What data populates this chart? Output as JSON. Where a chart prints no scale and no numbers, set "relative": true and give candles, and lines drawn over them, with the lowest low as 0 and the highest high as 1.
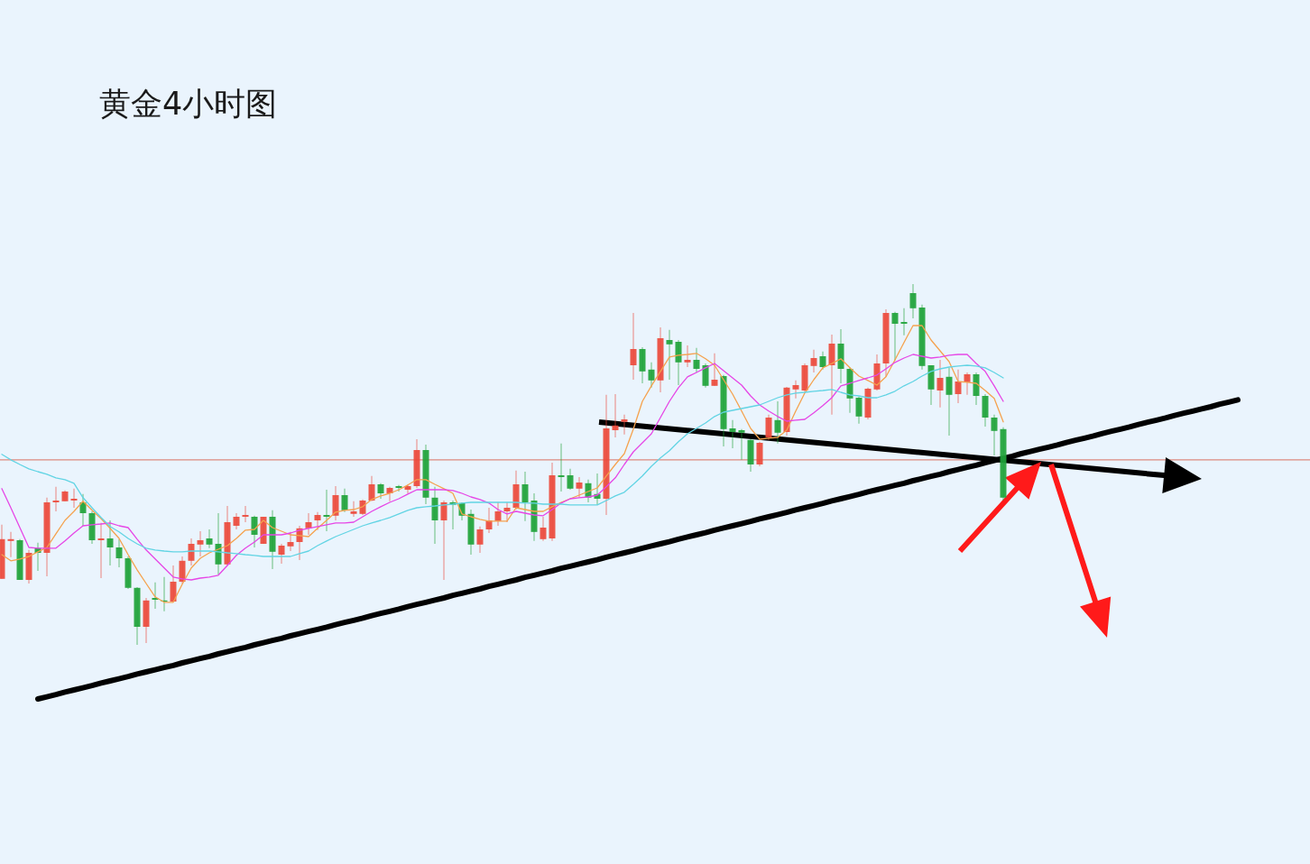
{
  "chart_data": {
    "type": "candlestick",
    "title": "黄金4小时图",
    "relative": true,
    "categories": [
      null,
      null,
      null,
      null,
      null,
      null,
      null,
      null,
      null,
      null,
      null,
      null,
      null,
      null,
      null,
      null,
      null,
      null,
      null,
      null,
      null,
      null,
      null,
      null,
      null,
      null,
      null,
      null,
      null,
      null,
      null,
      null,
      null,
      null,
      null,
      null,
      null,
      null,
      null,
      null,
      null,
      null,
      null,
      null,
      null,
      null,
      null,
      null,
      null,
      null,
      null,
      null,
      null,
      null,
      null,
      null,
      null,
      null,
      null,
      null,
      null,
      null,
      null,
      null,
      null,
      null,
      null,
      null,
      null,
      null,
      null,
      null,
      null,
      null,
      null,
      null,
      null,
      null,
      null,
      null,
      null,
      null,
      null,
      null,
      null,
      null,
      null,
      null,
      null,
      null,
      null,
      null,
      null,
      null,
      null,
      null,
      null,
      null,
      null,
      null,
      null,
      null,
      null,
      null,
      null,
      null,
      null,
      null,
      null,
      null,
      null,
      null,
      null,
      null,
      null,
      null,
      null,
      null,
      null,
      null,
      null,
      null,
      null,
      null,
      null,
      null,
      null,
      null,
      null,
      null,
      null,
      null,
      null,
      null,
      null,
      null,
      null,
      null,
      null,
      null,
      null,
      null,
      null,
      null,
      null,
      null
    ],
    "ohlc": [
      [
        0.183,
        0.333,
        0.183,
        0.293
      ],
      [
        0.288,
        0.313,
        0.243,
        0.293
      ],
      [
        0.29,
        0.293,
        0.18,
        0.18
      ],
      [
        0.18,
        0.263,
        0.17,
        0.255
      ],
      [
        0.268,
        0.283,
        0.205,
        0.255
      ],
      [
        0.255,
        0.408,
        0.19,
        0.395
      ],
      [
        0.395,
        0.438,
        0.37,
        0.4
      ],
      [
        0.398,
        0.428,
        0.398,
        0.425
      ],
      [
        0.4,
        0.433,
        0.38,
        0.405
      ],
      [
        0.395,
        0.418,
        0.33,
        0.365
      ],
      [
        0.365,
        0.37,
        0.28,
        0.29
      ],
      [
        0.29,
        0.338,
        0.185,
        0.295
      ],
      [
        0.295,
        0.345,
        0.22,
        0.27
      ],
      [
        0.27,
        0.293,
        0.215,
        0.24
      ],
      [
        0.24,
        0.245,
        0.155,
        0.158
      ],
      [
        0.158,
        0.16,
        0,
        0.05
      ],
      [
        0.05,
        0.13,
        0.005,
        0.123
      ],
      [
        0.13,
        0.173,
        0.1,
        0.125
      ],
      [
        0.123,
        0.188,
        0.093,
        0.12
      ],
      [
        0.12,
        0.22,
        0.118,
        0.175
      ],
      [
        0.175,
        0.245,
        0.17,
        0.233
      ],
      [
        0.233,
        0.295,
        0.22,
        0.28
      ],
      [
        0.278,
        0.315,
        0.245,
        0.29
      ],
      [
        0.295,
        0.32,
        0.268,
        0.278
      ],
      [
        0.28,
        0.365,
        0.195,
        0.223
      ],
      [
        0.223,
        0.385,
        0.22,
        0.34
      ],
      [
        0.33,
        0.365,
        0.32,
        0.355
      ],
      [
        0.355,
        0.385,
        0.34,
        0.36
      ],
      [
        0.355,
        0.358,
        0.27,
        0.305
      ],
      [
        0.28,
        0.355,
        0.28,
        0.355
      ],
      [
        0.355,
        0.373,
        0.21,
        0.258
      ],
      [
        0.25,
        0.28,
        0.225,
        0.275
      ],
      [
        0.273,
        0.313,
        0.26,
        0.285
      ],
      [
        0.285,
        0.33,
        0.235,
        0.323
      ],
      [
        0.323,
        0.365,
        0.305,
        0.34
      ],
      [
        0.345,
        0.368,
        0.318,
        0.36
      ],
      [
        0.36,
        0.43,
        0.315,
        0.355
      ],
      [
        0.358,
        0.44,
        0.345,
        0.415
      ],
      [
        0.415,
        0.433,
        0.368,
        0.373
      ],
      [
        0.363,
        0.398,
        0.355,
        0.37
      ],
      [
        0.363,
        0.403,
        0.36,
        0.4
      ],
      [
        0.4,
        0.468,
        0.398,
        0.445
      ],
      [
        0.445,
        0.448,
        0.405,
        0.42
      ],
      [
        0.42,
        0.438,
        0.398,
        0.435
      ],
      [
        0.44,
        0.443,
        0.425,
        0.435
      ],
      [
        0.43,
        0.445,
        0.42,
        0.44
      ],
      [
        0.44,
        0.57,
        0.435,
        0.54
      ],
      [
        0.54,
        0.555,
        0.39,
        0.408
      ],
      [
        0.408,
        0.438,
        0.28,
        0.345
      ],
      [
        0.345,
        0.4,
        0.18,
        0.395
      ],
      [
        0.395,
        0.4,
        0.32,
        0.388
      ],
      [
        0.393,
        0.395,
        0.345,
        0.358
      ],
      [
        0.363,
        0.375,
        0.25,
        0.278
      ],
      [
        0.278,
        0.328,
        0.255,
        0.32
      ],
      [
        0.32,
        0.38,
        0.31,
        0.345
      ],
      [
        0.343,
        0.395,
        0.33,
        0.37
      ],
      [
        0.37,
        0.395,
        0.34,
        0.38
      ],
      [
        0.38,
        0.483,
        0.375,
        0.445
      ],
      [
        0.445,
        0.48,
        0.343,
        0.395
      ],
      [
        0.4,
        0.42,
        0.288,
        0.313
      ],
      [
        0.293,
        0.355,
        0.288,
        0.325
      ],
      [
        0.295,
        0.505,
        0.288,
        0.47
      ],
      [
        0.47,
        0.558,
        0.425,
        0.465
      ],
      [
        0.47,
        0.488,
        0.43,
        0.433
      ],
      [
        0.433,
        0.465,
        0.408,
        0.45
      ],
      [
        0.448,
        0.458,
        0.395,
        0.408
      ],
      [
        0.418,
        0.475,
        0.388,
        0.405
      ],
      [
        0.405,
        0.693,
        0.36,
        0.6
      ],
      [
        0.595,
        0.695,
        0.575,
        0.608
      ],
      [
        0.618,
        0.638,
        0.583,
        0.625
      ],
      [
        0.775,
        0.92,
        0.735,
        0.82
      ],
      [
        0.82,
        0.825,
        0.725,
        0.758
      ],
      [
        0.763,
        0.783,
        0.713,
        0.733
      ],
      [
        0.733,
        0.88,
        0.7,
        0.85
      ],
      [
        0.845,
        0.873,
        0.735,
        0.833
      ],
      [
        0.84,
        0.845,
        0.72,
        0.783
      ],
      [
        0.783,
        0.83,
        0.77,
        0.79
      ],
      [
        0.79,
        0.823,
        0.755,
        0.765
      ],
      [
        0.775,
        0.78,
        0.713,
        0.718
      ],
      [
        0.718,
        0.808,
        0.718,
        0.735
      ],
      [
        0.745,
        0.748,
        0.55,
        0.598
      ],
      [
        0.6,
        0.623,
        0.545,
        0.59
      ],
      [
        0.595,
        0.598,
        0.513,
        0.588
      ],
      [
        0.568,
        0.57,
        0.48,
        0.5
      ],
      [
        0.5,
        0.563,
        0.495,
        0.56
      ],
      [
        0.575,
        0.638,
        0.568,
        0.63
      ],
      [
        0.623,
        0.675,
        0.558,
        0.588
      ],
      [
        0.59,
        0.715,
        0.58,
        0.713
      ],
      [
        0.708,
        0.733,
        0.683,
        0.72
      ],
      [
        0.705,
        0.78,
        0.7,
        0.775
      ],
      [
        0.773,
        0.818,
        0.755,
        0.795
      ],
      [
        0.8,
        0.813,
        0.763,
        0.77
      ],
      [
        0.775,
        0.86,
        0.638,
        0.835
      ],
      [
        0.835,
        0.875,
        0.725,
        0.765
      ],
      [
        0.765,
        0.77,
        0.643,
        0.683
      ],
      [
        0.685,
        0.688,
        0.613,
        0.633
      ],
      [
        0.63,
        0.713,
        0.625,
        0.71
      ],
      [
        0.708,
        0.805,
        0.705,
        0.78
      ],
      [
        0.78,
        0.93,
        0.743,
        0.92
      ],
      [
        0.92,
        0.923,
        0.788,
        0.89
      ],
      [
        0.895,
        0.933,
        0.858,
        0.89
      ],
      [
        0.975,
        1,
        0.905,
        0.933
      ],
      [
        0.935,
        0.943,
        0.763,
        0.773
      ],
      [
        0.775,
        0.775,
        0.665,
        0.708
      ],
      [
        0.705,
        0.79,
        0.658,
        0.74
      ],
      [
        0.743,
        0.768,
        0.58,
        0.693
      ],
      [
        0.695,
        0.763,
        0.67,
        0.73
      ],
      [
        0.728,
        0.755,
        0.693,
        0.75
      ],
      [
        0.75,
        0.755,
        0.665,
        0.69
      ],
      [
        0.69,
        0.695,
        0.605,
        0.63
      ],
      [
        0.63,
        0.638,
        0.525,
        0.593
      ],
      [
        0.598,
        0.603,
        0.4,
        0.408
      ],
      null,
      null,
      null,
      null,
      null,
      null,
      null,
      null,
      null,
      null,
      null,
      null,
      null,
      null,
      null,
      null,
      null,
      null,
      null,
      null,
      null,
      null,
      null,
      null,
      null,
      null,
      null,
      null,
      null,
      null,
      null,
      null,
      null,
      null
    ],
    "colors": [
      "#ec4a3c",
      "#ec4a3c",
      "#1fa33a",
      "#ec4a3c",
      "#1fa33a",
      "#ec4a3c",
      "#ec4a3c",
      "#ec4a3c",
      "#ec4a3c",
      "#1fa33a",
      "#1fa33a",
      "#ec4a3c",
      "#1fa33a",
      "#1fa33a",
      "#1fa33a",
      "#1fa33a",
      "#ec4a3c",
      "#1fa33a",
      "#1fa33a",
      "#ec4a3c",
      "#ec4a3c",
      "#ec4a3c",
      "#ec4a3c",
      "#1fa33a",
      "#1fa33a",
      "#ec4a3c",
      "#ec4a3c",
      "#ec4a3c",
      "#1fa33a",
      "#ec4a3c",
      "#1fa33a",
      "#ec4a3c",
      "#ec4a3c",
      "#ec4a3c",
      "#ec4a3c",
      "#ec4a3c",
      "#1fa33a",
      "#ec4a3c",
      "#1fa33a",
      "#ec4a3c",
      "#ec4a3c",
      "#ec4a3c",
      "#1fa33a",
      "#ec4a3c",
      "#1fa33a",
      "#ec4a3c",
      "#ec4a3c",
      "#1fa33a",
      "#1fa33a",
      "#ec4a3c",
      "#1fa33a",
      "#1fa33a",
      "#1fa33a",
      "#ec4a3c",
      "#ec4a3c",
      "#ec4a3c",
      "#ec4a3c",
      "#ec4a3c",
      "#1fa33a",
      "#1fa33a",
      "#ec4a3c",
      "#ec4a3c",
      "#1fa33a",
      "#1fa33a",
      "#ec4a3c",
      "#1fa33a",
      "#1fa33a",
      "#ec4a3c",
      "#ec4a3c",
      "#ec4a3c",
      "#ec4a3c",
      "#1fa33a",
      "#1fa33a",
      "#ec4a3c",
      "#1fa33a",
      "#1fa33a",
      "#ec4a3c",
      "#1fa33a",
      "#1fa33a",
      "#ec4a3c",
      "#1fa33a",
      "#1fa33a",
      "#1fa33a",
      "#1fa33a",
      "#ec4a3c",
      "#ec4a3c",
      "#1fa33a",
      "#ec4a3c",
      "#ec4a3c",
      "#ec4a3c",
      "#ec4a3c",
      "#1fa33a",
      "#ec4a3c",
      "#1fa33a",
      "#1fa33a",
      "#1fa33a",
      "#ec4a3c",
      "#ec4a3c",
      "#ec4a3c",
      "#1fa33a",
      "#1fa33a",
      "#1fa33a",
      "#1fa33a",
      "#1fa33a",
      "#ec4a3c",
      "#1fa33a",
      "#ec4a3c",
      "#ec4a3c",
      "#1fa33a",
      "#1fa33a",
      "#1fa33a",
      "#1fa33a",
      null,
      null,
      null,
      null,
      null,
      null,
      null,
      null,
      null,
      null,
      null,
      null,
      null,
      null,
      null,
      null,
      null,
      null,
      null,
      null,
      null,
      null,
      null,
      null,
      null,
      null,
      null,
      null,
      null,
      null,
      null,
      null,
      null,
      null
    ],
    "series": [
      {
        "type": "line",
        "color": "#f5a24e",
        "values": [
          0.25,
          0.233,
          0.238,
          0.245,
          0.258,
          0.27,
          0.308,
          0.345,
          0.37,
          0.398,
          0.373,
          0.35,
          0.323,
          0.295,
          0.25,
          0.208,
          0.17,
          0.133,
          0.118,
          0.118,
          0.168,
          0.213,
          0.24,
          0.255,
          0.265,
          0.275,
          0.295,
          0.318,
          0.32,
          0.345,
          0.325,
          0.315,
          0.305,
          0.303,
          0.3,
          0.323,
          0.345,
          0.368,
          0.373,
          0.375,
          0.383,
          0.403,
          0.413,
          0.42,
          0.43,
          0.443,
          0.458,
          0.458,
          0.445,
          0.433,
          0.42,
          0.363,
          0.355,
          0.348,
          0.343,
          0.343,
          0.343,
          0.38,
          0.375,
          0.37,
          0.37,
          0.383,
          0.395,
          0.405,
          0.415,
          0.425,
          0.435,
          0.468,
          0.5,
          0.53,
          0.598,
          0.675,
          0.718,
          0.758,
          0.798,
          0.803,
          0.805,
          0.808,
          0.793,
          0.775,
          0.735,
          0.695,
          0.648,
          0.6,
          0.57,
          0.573,
          0.575,
          0.595,
          0.648,
          0.698,
          0.735,
          0.768,
          0.78,
          0.793,
          0.768,
          0.745,
          0.733,
          0.72,
          0.743,
          0.79,
          0.838,
          0.885,
          0.885,
          0.845,
          0.815,
          0.785,
          0.73,
          0.728,
          0.725,
          0.705,
          0.683,
          0.618,
          null,
          null,
          null,
          null,
          null,
          null,
          null,
          null,
          null,
          null,
          null,
          null,
          null,
          null,
          null,
          null,
          null,
          null,
          null,
          null,
          null,
          null,
          null,
          null,
          null,
          null,
          null,
          null,
          null,
          null,
          null,
          null,
          null,
          null
        ]
      },
      {
        "type": "line",
        "color": "#e646e6",
        "values": [
          0.433,
          0.38,
          0.325,
          0.27,
          0.268,
          0.268,
          0.268,
          0.288,
          0.31,
          0.33,
          0.333,
          0.335,
          0.338,
          0.33,
          0.325,
          0.293,
          0.263,
          0.238,
          0.213,
          0.188,
          0.183,
          0.18,
          0.185,
          0.188,
          0.193,
          0.22,
          0.248,
          0.268,
          0.285,
          0.305,
          0.305,
          0.305,
          0.31,
          0.318,
          0.323,
          0.328,
          0.333,
          0.338,
          0.338,
          0.34,
          0.355,
          0.37,
          0.383,
          0.395,
          0.405,
          0.418,
          0.43,
          0.43,
          0.43,
          0.43,
          0.428,
          0.42,
          0.41,
          0.403,
          0.393,
          0.375,
          0.363,
          0.37,
          0.365,
          0.36,
          0.358,
          0.375,
          0.393,
          0.405,
          0.408,
          0.41,
          0.415,
          0.438,
          0.463,
          0.5,
          0.535,
          0.56,
          0.585,
          0.63,
          0.675,
          0.713,
          0.743,
          0.755,
          0.768,
          0.78,
          0.76,
          0.74,
          0.72,
          0.69,
          0.665,
          0.648,
          0.633,
          0.62,
          0.623,
          0.625,
          0.643,
          0.663,
          0.685,
          0.718,
          0.725,
          0.733,
          0.74,
          0.748,
          0.765,
          0.783,
          0.795,
          0.805,
          0.8,
          0.795,
          0.798,
          0.803,
          0.805,
          0.805,
          0.78,
          0.758,
          0.718,
          0.675,
          null,
          null,
          null,
          null,
          null,
          null,
          null,
          null,
          null,
          null,
          null,
          null,
          null,
          null,
          null,
          null,
          null,
          null,
          null,
          null,
          null,
          null,
          null,
          null,
          null,
          null,
          null,
          null,
          null,
          null,
          null,
          null,
          null,
          null
        ]
      },
      {
        "type": "line",
        "color": "#62d4e4",
        "values": [
          0.528,
          0.513,
          0.5,
          0.488,
          0.48,
          0.473,
          0.463,
          0.458,
          0.448,
          0.408,
          0.38,
          0.353,
          0.328,
          0.313,
          0.295,
          0.28,
          0.268,
          0.263,
          0.26,
          0.258,
          0.258,
          0.26,
          0.26,
          0.26,
          0.258,
          0.255,
          0.253,
          0.25,
          0.248,
          0.245,
          0.245,
          0.245,
          0.245,
          0.253,
          0.26,
          0.275,
          0.288,
          0.3,
          0.31,
          0.32,
          0.33,
          0.338,
          0.345,
          0.353,
          0.363,
          0.373,
          0.38,
          0.383,
          0.385,
          0.388,
          0.39,
          0.393,
          0.395,
          0.395,
          0.395,
          0.395,
          0.395,
          0.395,
          0.393,
          0.393,
          0.39,
          0.39,
          0.39,
          0.388,
          0.388,
          0.388,
          0.388,
          0.4,
          0.413,
          0.423,
          0.445,
          0.468,
          0.495,
          0.518,
          0.538,
          0.563,
          0.585,
          0.6,
          0.615,
          0.633,
          0.645,
          0.65,
          0.655,
          0.66,
          0.665,
          0.675,
          0.685,
          0.693,
          0.698,
          0.7,
          0.703,
          0.705,
          0.708,
          0.7,
          0.693,
          0.69,
          0.685,
          0.685,
          0.693,
          0.703,
          0.718,
          0.73,
          0.745,
          0.758,
          0.765,
          0.77,
          0.773,
          0.775,
          0.773,
          0.768,
          0.755,
          0.74,
          null,
          null,
          null,
          null,
          null,
          null,
          null,
          null,
          null,
          null,
          null,
          null,
          null,
          null,
          null,
          null,
          null,
          null,
          null,
          null,
          null,
          null,
          null,
          null,
          null,
          null,
          null,
          null,
          null,
          null,
          null,
          null,
          null,
          null
        ]
      },
      {
        "type": "line",
        "color": "#000000",
        "values": [
          null,
          null,
          null,
          null,
          -0.15,
          -0.144,
          -0.138,
          -0.131,
          -0.125,
          -0.119,
          -0.113,
          -0.106,
          -0.1,
          -0.094,
          -0.088,
          -0.081,
          -0.075,
          -0.069,
          -0.063,
          -0.057,
          -0.05,
          -0.044,
          -0.038,
          -0.032,
          -0.025,
          -0.019,
          -0.013,
          -0.007,
          0,
          0.006,
          0.012,
          0.018,
          0.025,
          0.031,
          0.037,
          0.043,
          0.049,
          0.056,
          0.062,
          0.068,
          0.074,
          0.081,
          0.087,
          0.093,
          0.099,
          0.106,
          0.112,
          0.118,
          0.124,
          0.13,
          0.137,
          0.143,
          0.149,
          0.155,
          0.162,
          0.168,
          0.174,
          0.18,
          0.187,
          0.193,
          0.199,
          0.205,
          0.212,
          0.218,
          0.224,
          0.23,
          0.236,
          0.243,
          0.249,
          0.255,
          0.261,
          0.268,
          0.274,
          0.28,
          0.286,
          0.293,
          0.299,
          0.305,
          0.311,
          0.318,
          0.324,
          0.33,
          0.336,
          0.342,
          0.349,
          0.355,
          0.361,
          0.367,
          0.374,
          0.38,
          0.386,
          0.392,
          0.399,
          0.405,
          0.411,
          0.417,
          0.424,
          0.43,
          0.436,
          0.442,
          0.448,
          0.455,
          0.461,
          0.467,
          0.473,
          0.48,
          0.486,
          0.492,
          0.498,
          0.505,
          0.511,
          0.517,
          0.523,
          0.53,
          0.536,
          0.542,
          0.548,
          0.554,
          0.561,
          0.567,
          0.573,
          0.579,
          0.586,
          0.592,
          0.598,
          0.604,
          0.611,
          0.617,
          0.623,
          0.629,
          0.636,
          0.642,
          0.648,
          0.654,
          0.66,
          0.667,
          0.673,
          0.679,
          null,
          null,
          null,
          null,
          null,
          null,
          null,
          null
        ]
      }
    ],
    "ref_lines": [
      {
        "axis": "y",
        "value": 0.513,
        "color": "#dc8a7e"
      }
    ]
  }
}
